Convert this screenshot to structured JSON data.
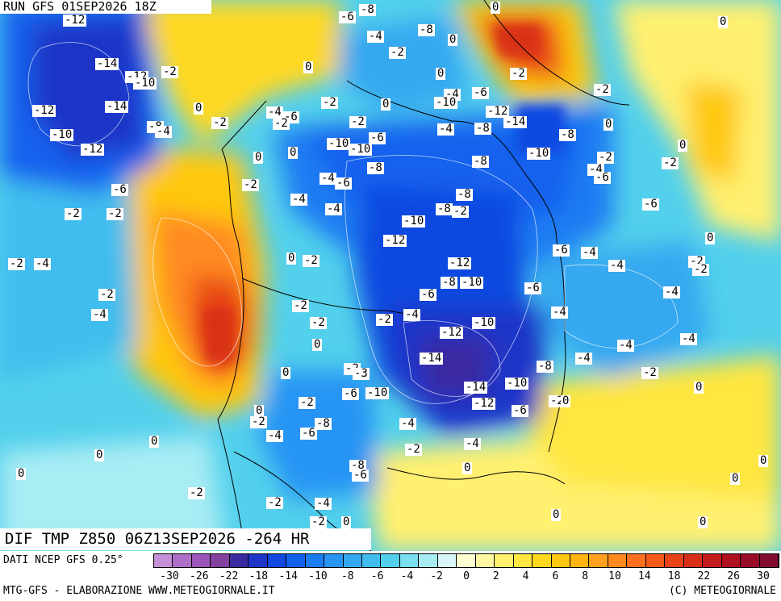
{
  "header": {
    "run": "RUN GFS 01SEP2026 18Z"
  },
  "footer": {
    "valid": "DIF TMP Z850 06Z13SEP2026 -264 HR",
    "source": "DATI NCEP GFS 0.25°",
    "credit": "MTG-GFS - ELABORAZIONE WWW.METEOGIORNALE.IT",
    "copyright": "(C) METEOGIORNALE"
  },
  "legend": {
    "ticks": [
      "-30",
      "-26",
      "-22",
      "-18",
      "-14",
      "-10",
      "-8",
      "-6",
      "-4",
      "-2",
      "0",
      "2",
      "4",
      "6",
      "8",
      "10",
      "14",
      "18",
      "22",
      "26",
      "30"
    ],
    "colors": [
      "#c690d8",
      "#ae6fc8",
      "#9a56b8",
      "#82409f",
      "#3a2aa0",
      "#1f35c8",
      "#1048e0",
      "#1262ee",
      "#1a7cf2",
      "#2894f4",
      "#34a8f0",
      "#40bdee",
      "#52d0ec",
      "#78e0ee",
      "#a8ecf4",
      "#d8f6f8",
      "#ffffd0",
      "#fff8a0",
      "#fff070",
      "#ffe640",
      "#ffd820",
      "#ffc810",
      "#ffb410",
      "#ffa020",
      "#ff8a20",
      "#ff7020",
      "#f85a1c",
      "#e84418",
      "#d83018",
      "#c41c1c",
      "#b01020",
      "#980c28",
      "#800c30"
    ]
  },
  "map_labels": [
    {
      "t": "-12"
    },
    {
      "t": "-8"
    },
    {
      "t": "-6"
    },
    {
      "t": "-4"
    },
    {
      "t": "-8"
    },
    {
      "t": "0"
    },
    {
      "t": "-2"
    },
    {
      "t": "0"
    },
    {
      "t": "0"
    },
    {
      "t": "-14"
    },
    {
      "t": "-12"
    },
    {
      "t": "-10"
    },
    {
      "t": "-2"
    },
    {
      "t": "0"
    },
    {
      "t": "0"
    },
    {
      "t": "-2"
    },
    {
      "t": "0"
    },
    {
      "t": "-2"
    },
    {
      "t": "-12"
    },
    {
      "t": "-14"
    },
    {
      "t": "0"
    },
    {
      "t": "-4"
    },
    {
      "t": "-6"
    },
    {
      "t": "-2"
    },
    {
      "t": "-2"
    },
    {
      "t": "-4"
    },
    {
      "t": "-6"
    },
    {
      "t": "-12"
    },
    {
      "t": "-8"
    },
    {
      "t": "-4"
    },
    {
      "t": "-2"
    },
    {
      "t": "-2"
    },
    {
      "t": "-10"
    },
    {
      "t": "-14"
    },
    {
      "t": "0"
    },
    {
      "t": "-10"
    },
    {
      "t": "-12"
    },
    {
      "t": "0"
    },
    {
      "t": "0"
    },
    {
      "t": "-10"
    },
    {
      "t": "-10"
    },
    {
      "t": "-6"
    },
    {
      "t": "-4"
    },
    {
      "t": "-8"
    },
    {
      "t": "-10"
    },
    {
      "t": "-8"
    },
    {
      "t": "0"
    },
    {
      "t": "-8"
    },
    {
      "t": "-8"
    },
    {
      "t": "-2"
    },
    {
      "t": "-4"
    },
    {
      "t": "-6"
    },
    {
      "t": "-2"
    },
    {
      "t": "-6"
    },
    {
      "t": "-2"
    },
    {
      "t": "-4"
    },
    {
      "t": "-6"
    },
    {
      "t": "-8"
    },
    {
      "t": "-6"
    },
    {
      "t": "-2"
    },
    {
      "t": "-2"
    },
    {
      "t": "-2"
    },
    {
      "t": "-4"
    },
    {
      "t": "-8"
    },
    {
      "t": "-10"
    },
    {
      "t": "-12"
    },
    {
      "t": "-4"
    },
    {
      "t": "0"
    },
    {
      "t": "-2"
    },
    {
      "t": "-4"
    },
    {
      "t": "0"
    },
    {
      "t": "-2"
    },
    {
      "t": "-6"
    },
    {
      "t": "-4"
    },
    {
      "t": "-12"
    },
    {
      "t": "-4"
    },
    {
      "t": "-2"
    },
    {
      "t": "-2"
    },
    {
      "t": "-6"
    },
    {
      "t": "-8"
    },
    {
      "t": "-10"
    },
    {
      "t": "-6"
    },
    {
      "t": "-4"
    },
    {
      "t": "-4"
    },
    {
      "t": "-2"
    },
    {
      "t": "-2"
    },
    {
      "t": "-2"
    },
    {
      "t": "-4"
    },
    {
      "t": "-4"
    },
    {
      "t": "-2"
    },
    {
      "t": "-12"
    },
    {
      "t": "-10"
    },
    {
      "t": "0"
    },
    {
      "t": "-4"
    },
    {
      "t": "-4"
    },
    {
      "t": "-14"
    },
    {
      "t": "-4"
    },
    {
      "t": "0"
    },
    {
      "t": "-2"
    },
    {
      "t": "-3"
    },
    {
      "t": "-8"
    },
    {
      "t": "-2"
    },
    {
      "t": "-10"
    },
    {
      "t": "0"
    },
    {
      "t": "-6"
    },
    {
      "t": "-10"
    },
    {
      "t": "-14"
    },
    {
      "t": "-12"
    },
    {
      "t": "-2"
    },
    {
      "t": "0"
    },
    {
      "t": "-2"
    },
    {
      "t": "-6"
    },
    {
      "t": "0"
    },
    {
      "t": "-2"
    },
    {
      "t": "-4"
    },
    {
      "t": "-6"
    },
    {
      "t": "-8"
    },
    {
      "t": "0"
    },
    {
      "t": "-4"
    },
    {
      "t": "-2"
    },
    {
      "t": "-4"
    },
    {
      "t": "0"
    },
    {
      "t": "0"
    },
    {
      "t": "-8"
    },
    {
      "t": "-6"
    },
    {
      "t": "0"
    },
    {
      "t": "-2"
    },
    {
      "t": "0"
    },
    {
      "t": "-2"
    },
    {
      "t": "-4"
    },
    {
      "t": "0"
    },
    {
      "t": "-2"
    },
    {
      "t": "0"
    },
    {
      "t": "0"
    },
    {
      "t": "0"
    }
  ]
}
